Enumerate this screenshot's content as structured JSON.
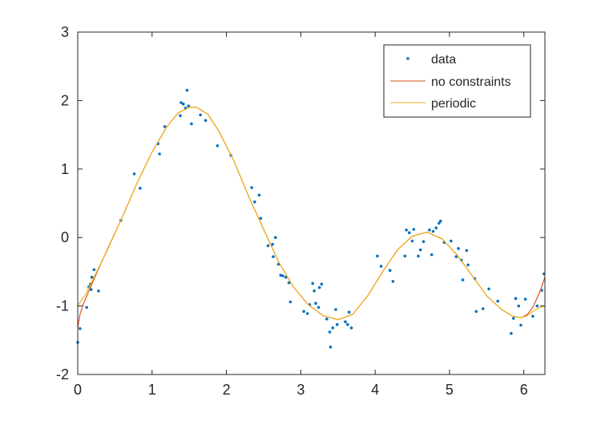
{
  "chart_data": {
    "type": "scatter",
    "title": "",
    "xlabel": "",
    "ylabel": "",
    "xlim": [
      0,
      6.2832
    ],
    "ylim": [
      -2,
      3
    ],
    "xticks": [
      0,
      1,
      2,
      3,
      4,
      5,
      6
    ],
    "yticks": [
      -2,
      -1,
      0,
      1,
      2,
      3
    ],
    "xtick_labels": [
      "0",
      "1",
      "2",
      "3",
      "4",
      "5",
      "6"
    ],
    "ytick_labels": [
      "-2",
      "-1",
      "0",
      "1",
      "2",
      "3"
    ],
    "grid": false,
    "legend_position": "top-right",
    "legend": [
      "data",
      "no constraints",
      "periodic"
    ],
    "colors": {
      "data": "#0072BD",
      "no_constraints": "#D95319",
      "periodic": "#EDB120",
      "axes": "#262626"
    },
    "series": [
      {
        "name": "data",
        "kind": "markers",
        "points": [
          [
            0.0,
            -1.53
          ],
          [
            0.03,
            -1.33
          ],
          [
            0.12,
            -1.02
          ],
          [
            0.15,
            -0.72
          ],
          [
            0.17,
            -0.68
          ],
          [
            0.18,
            -0.76
          ],
          [
            0.19,
            -0.58
          ],
          [
            0.22,
            -0.47
          ],
          [
            0.28,
            -0.78
          ],
          [
            0.58,
            0.25
          ],
          [
            0.76,
            0.93
          ],
          [
            0.84,
            0.72
          ],
          [
            1.08,
            1.37
          ],
          [
            1.1,
            1.22
          ],
          [
            1.17,
            1.62
          ],
          [
            1.38,
            1.78
          ],
          [
            1.39,
            1.97
          ],
          [
            1.42,
            1.95
          ],
          [
            1.45,
            1.89
          ],
          [
            1.47,
            2.15
          ],
          [
            1.49,
            1.92
          ],
          [
            1.53,
            1.66
          ],
          [
            1.65,
            1.79
          ],
          [
            1.72,
            1.71
          ],
          [
            1.88,
            1.34
          ],
          [
            2.06,
            1.2
          ],
          [
            2.34,
            0.73
          ],
          [
            2.38,
            0.52
          ],
          [
            2.44,
            0.62
          ],
          [
            2.46,
            0.28
          ],
          [
            2.56,
            -0.12
          ],
          [
            2.62,
            -0.1
          ],
          [
            2.63,
            -0.28
          ],
          [
            2.66,
            0.0
          ],
          [
            2.7,
            -0.39
          ],
          [
            2.73,
            -0.55
          ],
          [
            2.76,
            -0.56
          ],
          [
            2.8,
            -0.58
          ],
          [
            2.84,
            -0.66
          ],
          [
            2.86,
            -0.94
          ],
          [
            3.04,
            -1.08
          ],
          [
            3.09,
            -1.11
          ],
          [
            3.12,
            -0.98
          ],
          [
            3.16,
            -0.67
          ],
          [
            3.18,
            -0.78
          ],
          [
            3.2,
            -0.96
          ],
          [
            3.24,
            -1.02
          ],
          [
            3.25,
            -0.73
          ],
          [
            3.28,
            -0.68
          ],
          [
            3.35,
            -1.19
          ],
          [
            3.39,
            -1.38
          ],
          [
            3.4,
            -1.6
          ],
          [
            3.43,
            -1.32
          ],
          [
            3.47,
            -1.05
          ],
          [
            3.49,
            -1.27
          ],
          [
            3.6,
            -1.23
          ],
          [
            3.63,
            -1.27
          ],
          [
            3.65,
            -1.09
          ],
          [
            3.68,
            -1.32
          ],
          [
            4.03,
            -0.27
          ],
          [
            4.08,
            -0.42
          ],
          [
            4.2,
            -0.48
          ],
          [
            4.24,
            -0.64
          ],
          [
            4.4,
            -0.27
          ],
          [
            4.42,
            0.11
          ],
          [
            4.46,
            0.07
          ],
          [
            4.5,
            -0.05
          ],
          [
            4.52,
            0.12
          ],
          [
            4.58,
            -0.27
          ],
          [
            4.61,
            -0.18
          ],
          [
            4.65,
            -0.06
          ],
          [
            4.73,
            0.11
          ],
          [
            4.76,
            -0.25
          ],
          [
            4.78,
            0.09
          ],
          [
            4.82,
            0.14
          ],
          [
            4.86,
            0.21
          ],
          [
            4.88,
            0.24
          ],
          [
            4.93,
            -0.07
          ],
          [
            5.02,
            -0.05
          ],
          [
            5.09,
            -0.28
          ],
          [
            5.12,
            -0.16
          ],
          [
            5.16,
            -0.33
          ],
          [
            5.18,
            -0.62
          ],
          [
            5.23,
            -0.19
          ],
          [
            5.25,
            -0.4
          ],
          [
            5.34,
            -0.6
          ],
          [
            5.36,
            -1.08
          ],
          [
            5.45,
            -1.04
          ],
          [
            5.53,
            -0.75
          ],
          [
            5.65,
            -0.93
          ],
          [
            5.83,
            -1.4
          ],
          [
            5.86,
            -1.18
          ],
          [
            5.89,
            -0.89
          ],
          [
            5.93,
            -1.0
          ],
          [
            5.96,
            -1.28
          ],
          [
            6.02,
            -0.9
          ],
          [
            6.12,
            -1.15
          ],
          [
            6.18,
            -1.0
          ],
          [
            6.24,
            -0.77
          ],
          [
            6.27,
            -0.53
          ]
        ]
      },
      {
        "name": "no constraints",
        "kind": "line",
        "points": [
          [
            0.0,
            -1.32
          ],
          [
            0.03,
            -1.12
          ],
          [
            0.08,
            -0.96
          ],
          [
            0.15,
            -0.78
          ],
          [
            0.25,
            -0.53
          ],
          [
            0.4,
            -0.17
          ],
          [
            0.6,
            0.3
          ],
          [
            0.8,
            0.8
          ],
          [
            1.0,
            1.25
          ],
          [
            1.2,
            1.62
          ],
          [
            1.35,
            1.82
          ],
          [
            1.5,
            1.9
          ],
          [
            1.6,
            1.9
          ],
          [
            1.75,
            1.8
          ],
          [
            1.9,
            1.55
          ],
          [
            2.1,
            1.12
          ],
          [
            2.3,
            0.6
          ],
          [
            2.5,
            0.12
          ],
          [
            2.7,
            -0.35
          ],
          [
            2.9,
            -0.72
          ],
          [
            3.1,
            -0.98
          ],
          [
            3.3,
            -1.14
          ],
          [
            3.5,
            -1.2
          ],
          [
            3.7,
            -1.12
          ],
          [
            3.9,
            -0.85
          ],
          [
            4.1,
            -0.5
          ],
          [
            4.3,
            -0.18
          ],
          [
            4.5,
            0.02
          ],
          [
            4.7,
            0.08
          ],
          [
            4.9,
            -0.02
          ],
          [
            5.1,
            -0.25
          ],
          [
            5.3,
            -0.55
          ],
          [
            5.5,
            -0.85
          ],
          [
            5.7,
            -1.05
          ],
          [
            5.85,
            -1.15
          ],
          [
            5.97,
            -1.17
          ],
          [
            6.05,
            -1.12
          ],
          [
            6.12,
            -1.02
          ],
          [
            6.18,
            -0.88
          ],
          [
            6.23,
            -0.75
          ],
          [
            6.2832,
            -0.58
          ]
        ]
      },
      {
        "name": "periodic",
        "kind": "line",
        "points": [
          [
            0.0,
            -1.0
          ],
          [
            0.04,
            -0.93
          ],
          [
            0.1,
            -0.84
          ],
          [
            0.2,
            -0.62
          ],
          [
            0.4,
            -0.18
          ],
          [
            0.6,
            0.3
          ],
          [
            0.8,
            0.8
          ],
          [
            1.0,
            1.25
          ],
          [
            1.2,
            1.62
          ],
          [
            1.35,
            1.82
          ],
          [
            1.5,
            1.9
          ],
          [
            1.6,
            1.9
          ],
          [
            1.75,
            1.8
          ],
          [
            1.9,
            1.55
          ],
          [
            2.1,
            1.12
          ],
          [
            2.3,
            0.6
          ],
          [
            2.5,
            0.12
          ],
          [
            2.7,
            -0.35
          ],
          [
            2.9,
            -0.72
          ],
          [
            3.1,
            -0.98
          ],
          [
            3.3,
            -1.14
          ],
          [
            3.5,
            -1.2
          ],
          [
            3.7,
            -1.12
          ],
          [
            3.9,
            -0.85
          ],
          [
            4.1,
            -0.5
          ],
          [
            4.3,
            -0.18
          ],
          [
            4.5,
            0.02
          ],
          [
            4.7,
            0.08
          ],
          [
            4.9,
            -0.02
          ],
          [
            5.1,
            -0.25
          ],
          [
            5.3,
            -0.55
          ],
          [
            5.5,
            -0.85
          ],
          [
            5.7,
            -1.05
          ],
          [
            5.85,
            -1.15
          ],
          [
            5.97,
            -1.17
          ],
          [
            6.05,
            -1.14
          ],
          [
            6.12,
            -1.08
          ],
          [
            6.2,
            -1.03
          ],
          [
            6.2832,
            -1.0
          ]
        ]
      }
    ]
  }
}
